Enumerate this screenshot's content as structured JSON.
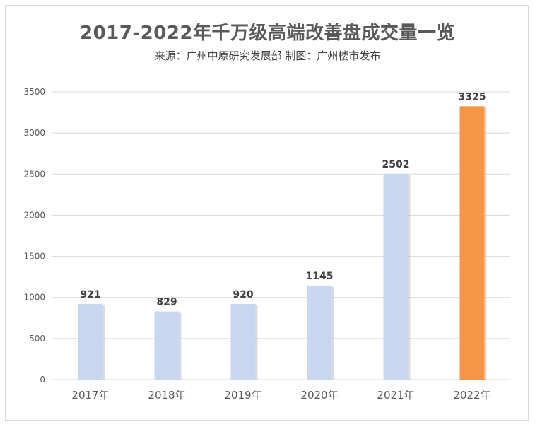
{
  "chart_data": {
    "type": "bar",
    "title": "2017-2022年千万级高端改善盘成交量一览",
    "subtitle": "来源：广州中原研究发展部   制图：广州楼市发布",
    "categories": [
      "2017年",
      "2018年",
      "2019年",
      "2020年",
      "2021年",
      "2022年"
    ],
    "values": [
      921,
      829,
      920,
      1145,
      2502,
      3325
    ],
    "ylim": [
      0,
      3500
    ],
    "yticks": [
      0,
      500,
      1000,
      1500,
      2000,
      2500,
      3000,
      3500
    ],
    "grid": true,
    "xlabel": "",
    "ylabel": "",
    "colors": {
      "bar": "#c6d7ef",
      "highlight": "#f79646",
      "grid": "#d9d9d9"
    },
    "highlight_index": 5
  }
}
